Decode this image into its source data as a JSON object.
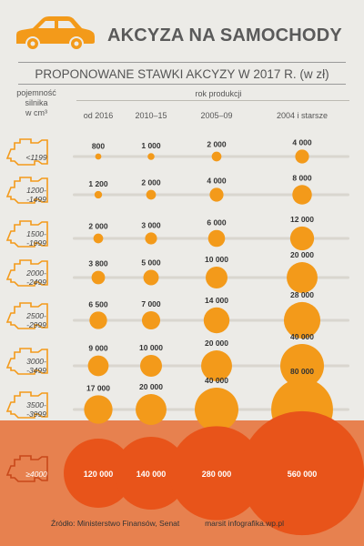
{
  "header": {
    "title": "AKCYZA NA SAMOCHODY",
    "subtitle": "PROPONOWANE STAWKI AKCYZY W 2017 R. (w zł)"
  },
  "table_heads": {
    "capacity_line1": "pojemność",
    "capacity_line2": "silnika",
    "capacity_line3": "w cm³",
    "production": "rok produkcji"
  },
  "colors": {
    "accent": "#f39a1a",
    "track": "#d9d6cf",
    "lower_bg": "#e7814f",
    "big_bubble": "#e8541a"
  },
  "chart_data": {
    "type": "bubble",
    "title": "PROPONOWANE STAWKI AKCYZY W 2017 R. (w zł)",
    "categories": [
      "od 2016",
      "2010–15",
      "2005–09",
      "2004 i starsze"
    ],
    "rows": [
      {
        "label_line1": "<1199",
        "label_line2": "",
        "values": [
          800,
          1000,
          2000,
          4000
        ]
      },
      {
        "label_line1": "1200-",
        "label_line2": "-1499",
        "values": [
          1200,
          2000,
          4000,
          8000
        ]
      },
      {
        "label_line1": "1500-",
        "label_line2": "-1999",
        "values": [
          2000,
          3000,
          6000,
          12000
        ]
      },
      {
        "label_line1": "2000-",
        "label_line2": "-2499",
        "values": [
          3800,
          5000,
          10000,
          20000
        ]
      },
      {
        "label_line1": "2500-",
        "label_line2": "-2999",
        "values": [
          6500,
          7000,
          14000,
          28000
        ]
      },
      {
        "label_line1": "3000-",
        "label_line2": "-3499",
        "values": [
          9000,
          10000,
          20000,
          40000
        ]
      },
      {
        "label_line1": "3500-",
        "label_line2": "-3999",
        "values": [
          17000,
          20000,
          40000,
          80000
        ]
      },
      {
        "label_line1": "≥4000",
        "label_line2": "",
        "values": [
          120000,
          140000,
          280000,
          560000
        ]
      }
    ],
    "value_labels": [
      [
        "800",
        "1 000",
        "2 000",
        "4 000"
      ],
      [
        "1 200",
        "2 000",
        "4 000",
        "8 000"
      ],
      [
        "2 000",
        "3 000",
        "6 000",
        "12 000"
      ],
      [
        "3 800",
        "5 000",
        "10 000",
        "20 000"
      ],
      [
        "6 500",
        "7 000",
        "14 000",
        "28 000"
      ],
      [
        "9 000",
        "10 000",
        "20 000",
        "40 000"
      ],
      [
        "17 000",
        "20 000",
        "40 000",
        "80 000"
      ],
      [
        "120 000",
        "140 000",
        "280 000",
        "560 000"
      ]
    ]
  },
  "footer": {
    "source": "Źródło: Ministerstwo Finansów, Senat",
    "credit": "marsit infografika.wp.pl"
  }
}
